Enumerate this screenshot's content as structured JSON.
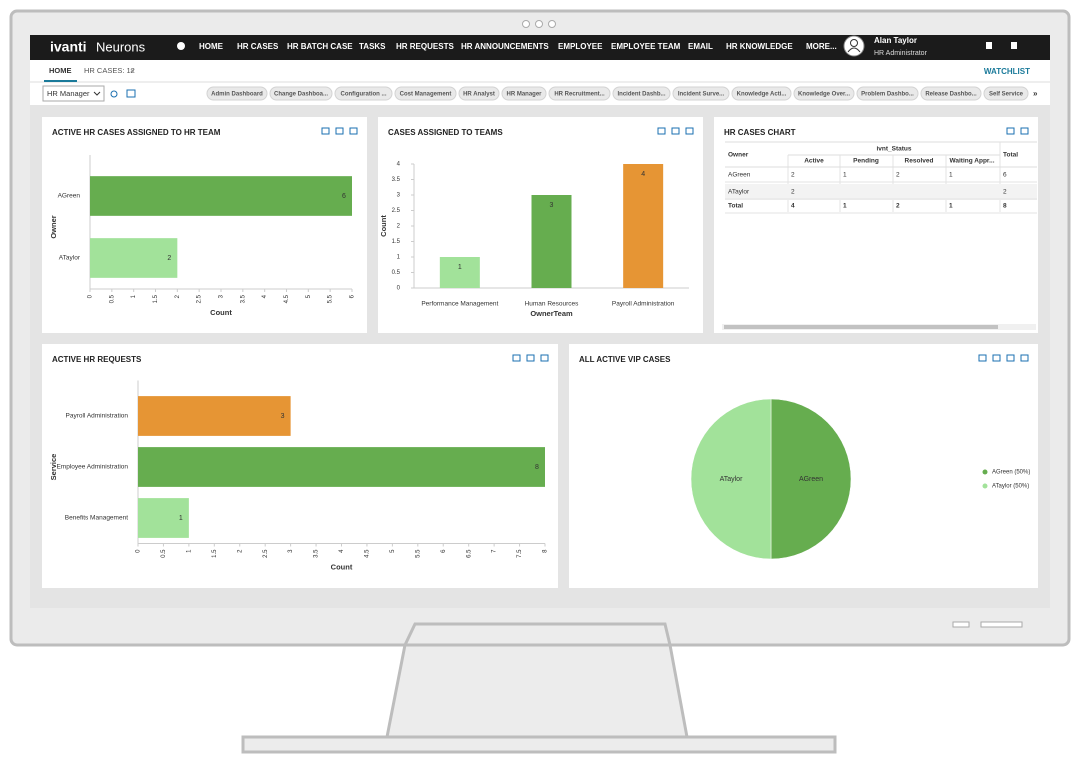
{
  "app": {
    "brand": "ivanti",
    "product": "Neurons"
  },
  "nav": [
    "HOME",
    "HR CASES",
    "HR BATCH CASE",
    "TASKS",
    "HR REQUESTS",
    "HR ANNOUNCEMENTS",
    "EMPLOYEE",
    "EMPLOYEE TEAM",
    "EMAIL",
    "HR KNOWLEDGE",
    "MORE..."
  ],
  "user": {
    "name": "Alan Taylor",
    "role": "HR Administrator"
  },
  "tabs": [
    "HOME",
    "HR CASES: 12"
  ],
  "watchlist": "WATCHLIST",
  "role_select": "HR Manager",
  "dashboards": [
    "Admin Dashboard",
    "Change Dashboa...",
    "Configuration ...",
    "Cost Management",
    "HR Analyst",
    "HR Manager",
    "HR Recruitment...",
    "Incident Dashb...",
    "Incident Surve...",
    "Knowledge Acti...",
    "Knowledge Over...",
    "Problem Dashbo...",
    "Release Dashbo...",
    "Self Service"
  ],
  "widgets": {
    "hr_team": {
      "type": "bar",
      "orientation": "horizontal",
      "title": "ACTIVE HR CASES ASSIGNED TO HR TEAM",
      "x_label": "Count",
      "y_label": "Owner",
      "categories": [
        "AGreen",
        "ATaylor"
      ],
      "values": [
        6,
        2
      ],
      "colors": [
        "#66ad4f",
        "#a2e29a"
      ],
      "xlim": [
        0,
        6
      ],
      "xticks": [
        0,
        0.5,
        1,
        1.5,
        2,
        2.5,
        3,
        3.5,
        4,
        4.5,
        5,
        5.5,
        6
      ]
    },
    "teams": {
      "type": "bar",
      "orientation": "vertical",
      "title": "CASES ASSIGNED TO TEAMS",
      "x_label": "OwnerTeam",
      "y_label": "Count",
      "categories": [
        "Performance Management",
        "Human Resources",
        "Payroll Administration"
      ],
      "values": [
        1,
        3,
        4
      ],
      "colors": [
        "#a2e29a",
        "#66ad4f",
        "#e69534"
      ],
      "ylim": [
        0,
        4
      ],
      "yticks": [
        0,
        0.5,
        1,
        1.5,
        2,
        2.5,
        3,
        3.5,
        4
      ]
    },
    "table": {
      "title": "HR CASES CHART",
      "owner_header": "Owner",
      "group_header": "ivnt_Status",
      "columns": [
        "Active",
        "Pending",
        "Resolved",
        "Waiting Appr...",
        "Total"
      ],
      "rows": [
        {
          "owner": "AGreen",
          "cells": [
            2,
            1,
            2,
            1,
            6
          ]
        },
        {
          "owner": "ATaylor",
          "cells": [
            2,
            null,
            null,
            null,
            2
          ]
        },
        {
          "owner": "Total",
          "cells": [
            4,
            1,
            2,
            1,
            8
          ]
        }
      ]
    },
    "requests": {
      "type": "bar",
      "orientation": "horizontal",
      "title": "ACTIVE HR REQUESTS",
      "x_label": "Count",
      "y_label": "Service",
      "categories": [
        "Payroll Administration",
        "Employee Administration",
        "Benefits Management"
      ],
      "values": [
        3,
        8,
        1
      ],
      "colors": [
        "#e69534",
        "#66ad4f",
        "#a2e29a"
      ],
      "xlim": [
        0,
        8
      ],
      "xticks": [
        0,
        0.5,
        1,
        1.5,
        2,
        2.5,
        3,
        3.5,
        4,
        4.5,
        5,
        5.5,
        6,
        6.5,
        7,
        7.5,
        8
      ]
    },
    "vip": {
      "type": "pie",
      "title": "ALL ACTIVE VIP CASES",
      "categories": [
        "AGreen",
        "ATaylor"
      ],
      "values": [
        50,
        50
      ],
      "colors": [
        "#66ad4f",
        "#a2e29a"
      ],
      "legend_labels": [
        "AGreen (50%)",
        "ATaylor (50%)"
      ]
    }
  }
}
